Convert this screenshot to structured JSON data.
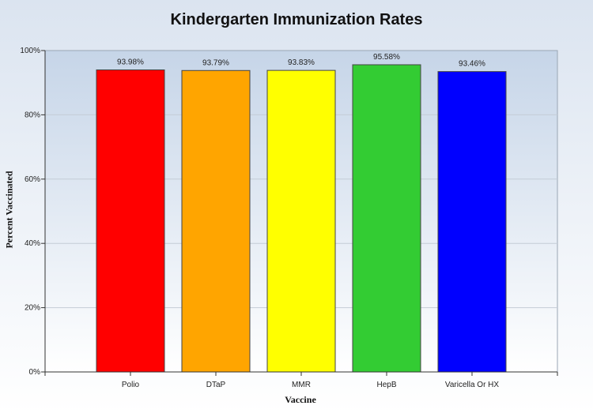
{
  "chart_data": {
    "type": "bar",
    "title": "Kindergarten Immunization Rates",
    "xlabel": "Vaccine",
    "ylabel": "Percent Vaccinated",
    "categories": [
      "Polio",
      "DTaP",
      "MMR",
      "HepB",
      "Varicella Or HX"
    ],
    "values": [
      93.98,
      93.79,
      93.83,
      95.58,
      93.46
    ],
    "data_labels": [
      "93.98%",
      "93.79%",
      "93.83%",
      "95.58%",
      "93.46%"
    ],
    "colors": [
      "#ff0000",
      "#ffa500",
      "#ffff00",
      "#33cc33",
      "#0000ff"
    ],
    "ylim": [
      0,
      100
    ],
    "yticks": [
      0,
      20,
      40,
      60,
      80,
      100
    ],
    "ytick_labels": [
      "0%",
      "20%",
      "40%",
      "60%",
      "80%",
      "100%"
    ],
    "grid": true,
    "legend": "none"
  }
}
